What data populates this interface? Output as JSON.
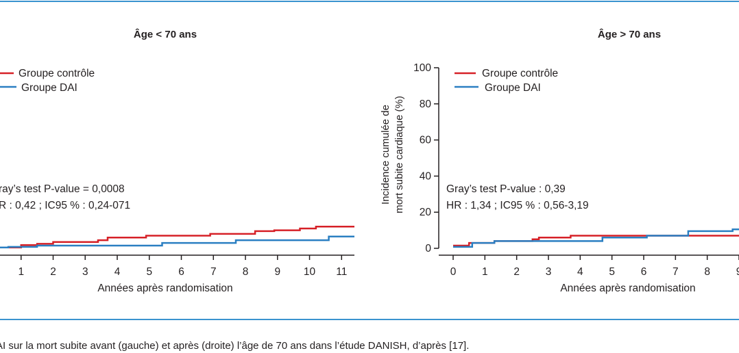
{
  "colors": {
    "rule": "#3a93cf",
    "control": "#d62027",
    "icd": "#2a7fc2",
    "axis": "#231f20"
  },
  "caption": "AI sur la mort subite avant (gauche) et après (droite) l’âge de 70 ans dans l’étude DANISH, d’après [17].",
  "chart_data": [
    {
      "type": "line",
      "title": "Âge < 70 ans",
      "xlabel": "Années après randomisation",
      "ylabel": "",
      "x_ticks": [
        "1",
        "2",
        "3",
        "4",
        "5",
        "6",
        "7",
        "8",
        "9",
        "10",
        "11"
      ],
      "x_tick_values": [
        1,
        2,
        3,
        4,
        5,
        6,
        7,
        8,
        9,
        10,
        11
      ],
      "y_ticks": [],
      "xlim": [
        0,
        11.4
      ],
      "ylim": [
        0,
        100
      ],
      "legend": [
        "Groupe contrôle",
        "Groupe DAI"
      ],
      "legend_placement": "top-left",
      "annotations": [
        "ray’s test P-value = 0,0008",
        "R : 0,42 ; IC95 % : 0,24-071"
      ],
      "series": [
        {
          "name": "Groupe contrôle",
          "x": [
            0,
            0.6,
            1,
            1.5,
            2,
            3.4,
            3.7,
            4.9,
            5.8,
            6.9,
            7.8,
            8.3,
            8.9,
            9.7,
            10.2,
            11.4
          ],
          "y": [
            0.5,
            0.5,
            1.8,
            2.5,
            3.5,
            4.5,
            6,
            7,
            7,
            8,
            8,
            9.5,
            10,
            11,
            12,
            12
          ]
        },
        {
          "name": "Groupe DAI",
          "x": [
            0,
            0.6,
            1.5,
            5.4,
            7.7,
            10.6,
            11.4
          ],
          "y": [
            0.5,
            0.8,
            1.5,
            3,
            4.5,
            6.5,
            6.5
          ]
        }
      ]
    },
    {
      "type": "line",
      "title": "Âge > 70 ans",
      "xlabel": "Années après randomisation",
      "ylabel": "Incidence cumulée de mort subite cardiaque (%)",
      "ylabel_lines": [
        "Incidence cumulée de",
        "mort subite cardiaque (%)"
      ],
      "x_ticks": [
        "0",
        "1",
        "2",
        "3",
        "4",
        "5",
        "6",
        "7",
        "8",
        "9"
      ],
      "x_tick_values": [
        0,
        1,
        2,
        3,
        4,
        5,
        6,
        7,
        8,
        9
      ],
      "y_ticks": [
        "0",
        "20",
        "40",
        "60",
        "80",
        "100"
      ],
      "y_tick_values": [
        0,
        20,
        40,
        60,
        80,
        100
      ],
      "xlim": [
        0,
        9
      ],
      "ylim": [
        0,
        100
      ],
      "legend": [
        "Groupe contrôle",
        "Groupe DAI"
      ],
      "legend_placement": "top-left",
      "annotations": [
        "Gray’s test P-value : 0,39",
        "HR : 1,34 ; IC95 % : 0,56-3,19"
      ],
      "series": [
        {
          "name": "Groupe contrôle",
          "x": [
            0,
            0.5,
            1.3,
            2.5,
            2.7,
            3.7,
            4.7,
            5.9,
            6.1,
            7.4,
            9
          ],
          "y": [
            1.5,
            3,
            4,
            5,
            6,
            7,
            7,
            7,
            7,
            7,
            7
          ]
        },
        {
          "name": "Groupe DAI",
          "x": [
            0,
            0.6,
            1.3,
            2.3,
            4.7,
            6.1,
            7.4,
            8.8,
            9
          ],
          "y": [
            0.8,
            3,
            4,
            4,
            6,
            7,
            9.5,
            10.5,
            10.5
          ]
        }
      ]
    }
  ]
}
